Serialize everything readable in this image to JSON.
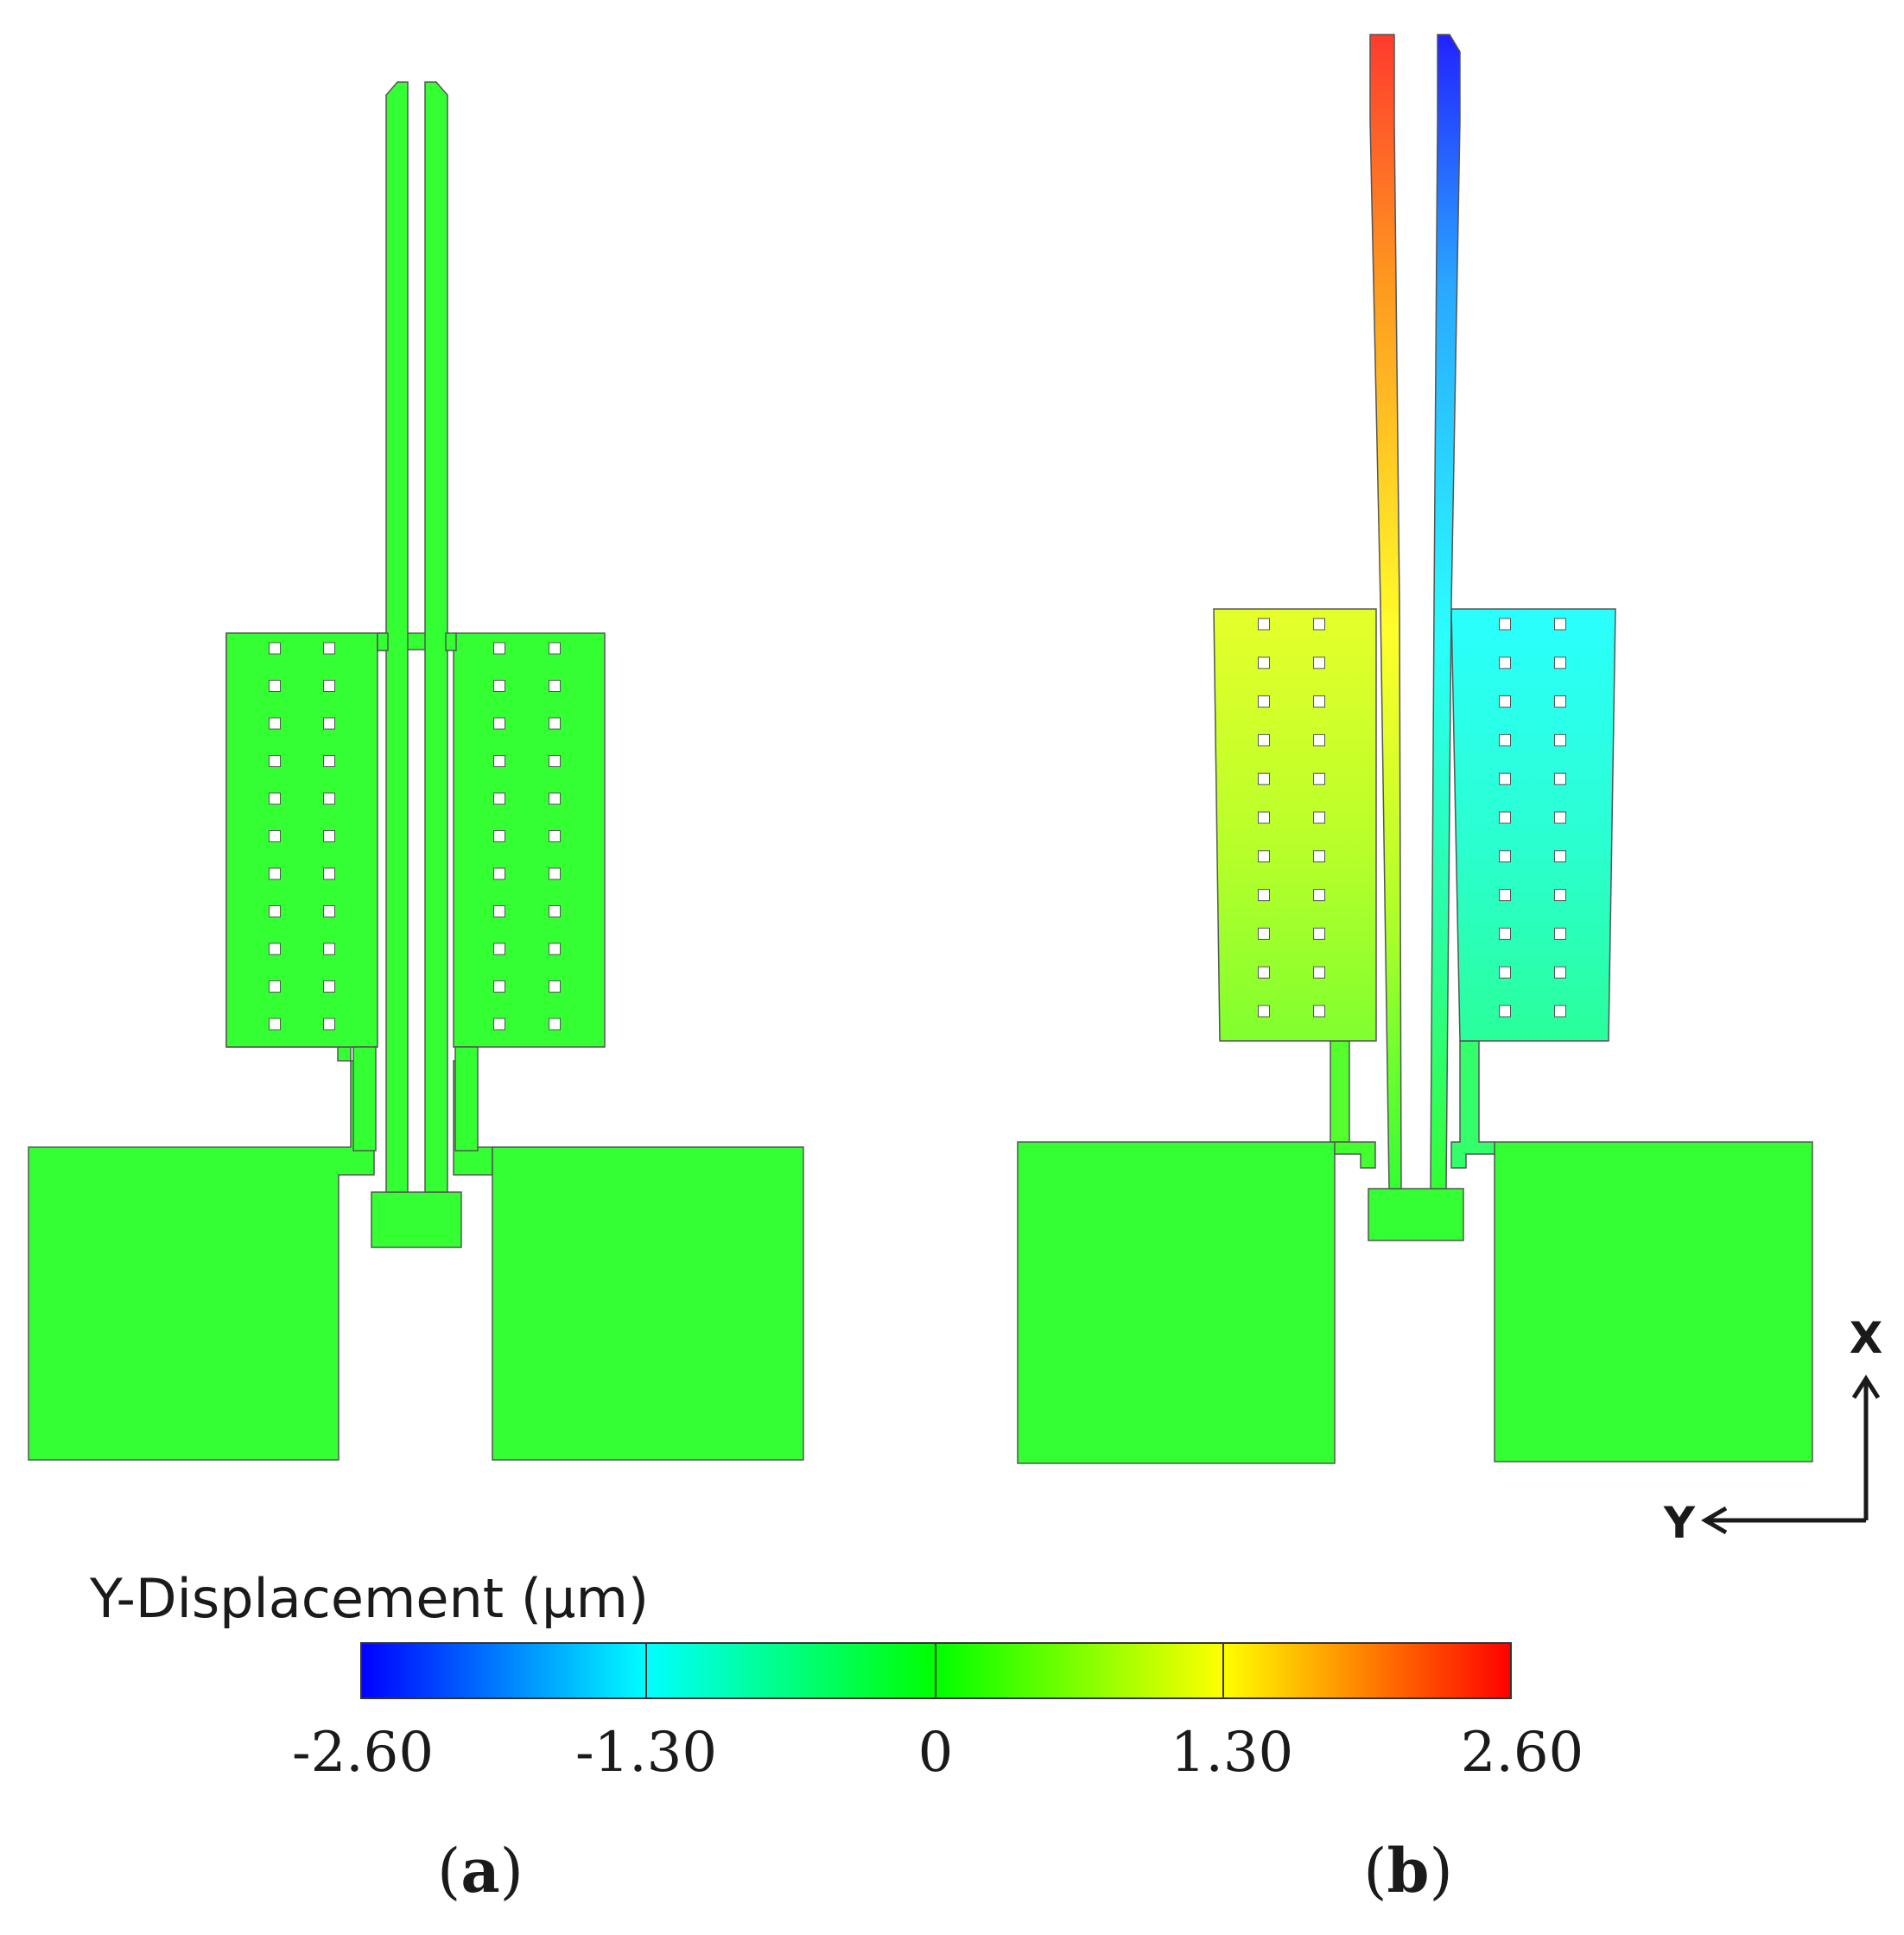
{
  "colorbar": {
    "title": "Y-Displacement (µm)",
    "ticks": [
      "-2.60",
      "-1.30",
      "0",
      "1.30",
      "2.60"
    ],
    "min": -2.6,
    "max": 2.6,
    "colors": [
      "#0000ff",
      "#00ffff",
      "#00ff00",
      "#ffff00",
      "#ff0000"
    ]
  },
  "axes": {
    "x": "X",
    "y": "Y"
  },
  "panels": {
    "a": {
      "open": "(",
      "letter": "a",
      "close": ")"
    },
    "b": {
      "open": "(",
      "letter": "b",
      "close": ")"
    }
  },
  "colors": {
    "zero_green": "#33ff33",
    "red": "#ff3b2e",
    "orange": "#ff9a1f",
    "yellow": "#ffff2a",
    "yellow_green": "#ccff2a",
    "blue": "#2222ff",
    "sky": "#2aa8ff",
    "cyan": "#2affff",
    "aqua_green": "#2affc0"
  }
}
